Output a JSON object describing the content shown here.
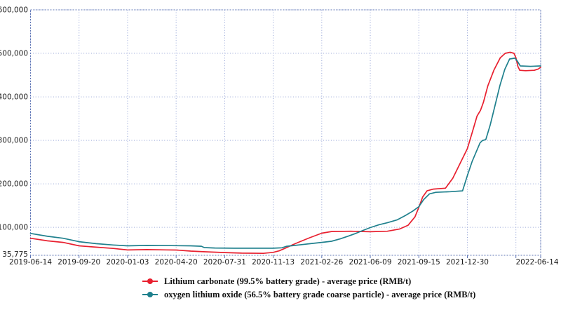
{
  "chart_data": {
    "type": "line",
    "title": "",
    "grid": true,
    "legend_position": "bottom",
    "x_axis": {
      "max": 10.51,
      "labels": [
        "2019-06-14",
        "2019-09-20",
        "2020-01-03",
        "2020-04-20",
        "2020-07-31",
        "2020-11-13",
        "2021-02-26",
        "2021-06-09",
        "2021-09-15",
        "2021-12-30",
        "2022-06-14"
      ],
      "label_positions": [
        0,
        1,
        2,
        3,
        4,
        5,
        6,
        7,
        8,
        9,
        10.51
      ],
      "gridline_positions": [
        0,
        1,
        2,
        3,
        4,
        5,
        6,
        7,
        8,
        9,
        10,
        10.51
      ]
    },
    "y_axis": {
      "min": 35775,
      "max": 600000,
      "unit": "RMB/t",
      "tick_values": [
        600000,
        500000,
        400000,
        300000,
        200000,
        100000
      ],
      "tick_labels": [
        "600,000",
        "500,000",
        "400,000",
        "300,000",
        "200,000",
        "100,000"
      ],
      "min_label": "35,775"
    },
    "series": [
      {
        "name": "Lithium carbonate (99.5% battery grade) - average price (RMB/t)",
        "color": "#e8202f",
        "points": [
          [
            0,
            75000
          ],
          [
            0.35,
            69000
          ],
          [
            0.67,
            65500
          ],
          [
            1,
            57500
          ],
          [
            1.35,
            54500
          ],
          [
            1.7,
            51500
          ],
          [
            2,
            48000
          ],
          [
            2.4,
            48800
          ],
          [
            2.8,
            48200
          ],
          [
            3,
            47800
          ],
          [
            3.3,
            45500
          ],
          [
            3.6,
            43800
          ],
          [
            4,
            42000
          ],
          [
            4.35,
            40800
          ],
          [
            4.8,
            40300
          ],
          [
            5,
            42500
          ],
          [
            5.12,
            46000
          ],
          [
            5.25,
            52000
          ],
          [
            5.4,
            60000
          ],
          [
            5.55,
            67000
          ],
          [
            5.75,
            76000
          ],
          [
            6,
            86500
          ],
          [
            6.2,
            90500
          ],
          [
            6.6,
            91000
          ],
          [
            7,
            90000
          ],
          [
            7.35,
            91000
          ],
          [
            7.6,
            96000
          ],
          [
            7.78,
            105000
          ],
          [
            7.92,
            124000
          ],
          [
            8,
            146000
          ],
          [
            8.08,
            170000
          ],
          [
            8.17,
            184000
          ],
          [
            8.3,
            188000
          ],
          [
            8.55,
            190000
          ],
          [
            8.7,
            213000
          ],
          [
            8.85,
            247000
          ],
          [
            9,
            281000
          ],
          [
            9.1,
            318000
          ],
          [
            9.2,
            356000
          ],
          [
            9.27,
            369000
          ],
          [
            9.33,
            387000
          ],
          [
            9.42,
            425000
          ],
          [
            9.55,
            462000
          ],
          [
            9.68,
            490000
          ],
          [
            9.78,
            500000
          ],
          [
            9.88,
            502500
          ],
          [
            9.96,
            500000
          ],
          [
            10,
            490000
          ],
          [
            10.04,
            470000
          ],
          [
            10.08,
            461000
          ],
          [
            10.2,
            460000
          ],
          [
            10.38,
            461000
          ],
          [
            10.46,
            464000
          ],
          [
            10.51,
            468000
          ]
        ]
      },
      {
        "name": "oxygen lithium oxide (56.5% battery grade coarse particle) - average price (RMB/t)",
        "color": "#1f808d",
        "points": [
          [
            0,
            86000
          ],
          [
            0.35,
            79500
          ],
          [
            0.67,
            75000
          ],
          [
            1,
            67000
          ],
          [
            1.35,
            62500
          ],
          [
            1.7,
            59500
          ],
          [
            2,
            57500
          ],
          [
            2.4,
            58500
          ],
          [
            2.9,
            58000
          ],
          [
            3.3,
            57500
          ],
          [
            3.52,
            56500
          ],
          [
            3.58,
            53500
          ],
          [
            3.8,
            52500
          ],
          [
            4.2,
            52000
          ],
          [
            5,
            52000
          ],
          [
            5.18,
            53000
          ],
          [
            5.28,
            56500
          ],
          [
            5.45,
            58500
          ],
          [
            5.6,
            60500
          ],
          [
            5.8,
            63000
          ],
          [
            6,
            65500
          ],
          [
            6.2,
            68000
          ],
          [
            6.38,
            73500
          ],
          [
            6.55,
            80000
          ],
          [
            6.7,
            86000
          ],
          [
            6.85,
            93000
          ],
          [
            7,
            99500
          ],
          [
            7.18,
            106000
          ],
          [
            7.35,
            110500
          ],
          [
            7.55,
            117000
          ],
          [
            7.72,
            127000
          ],
          [
            7.87,
            137000
          ],
          [
            8,
            147500
          ],
          [
            8.1,
            164000
          ],
          [
            8.22,
            177000
          ],
          [
            8.35,
            180500
          ],
          [
            8.65,
            182000
          ],
          [
            8.9,
            184000
          ],
          [
            9,
            219000
          ],
          [
            9.1,
            252000
          ],
          [
            9.2,
            278000
          ],
          [
            9.26,
            294000
          ],
          [
            9.31,
            299500
          ],
          [
            9.38,
            302000
          ],
          [
            9.47,
            335000
          ],
          [
            9.57,
            380000
          ],
          [
            9.67,
            426000
          ],
          [
            9.77,
            463000
          ],
          [
            9.87,
            487000
          ],
          [
            9.98,
            489000
          ],
          [
            10.03,
            482000
          ],
          [
            10.09,
            471000
          ],
          [
            10.3,
            470000
          ],
          [
            10.51,
            471000
          ]
        ]
      }
    ]
  },
  "colors": {
    "grid": "#94a3d6",
    "border": "#5f76b5",
    "text": "#1b1b1b",
    "background": "#ffffff"
  }
}
